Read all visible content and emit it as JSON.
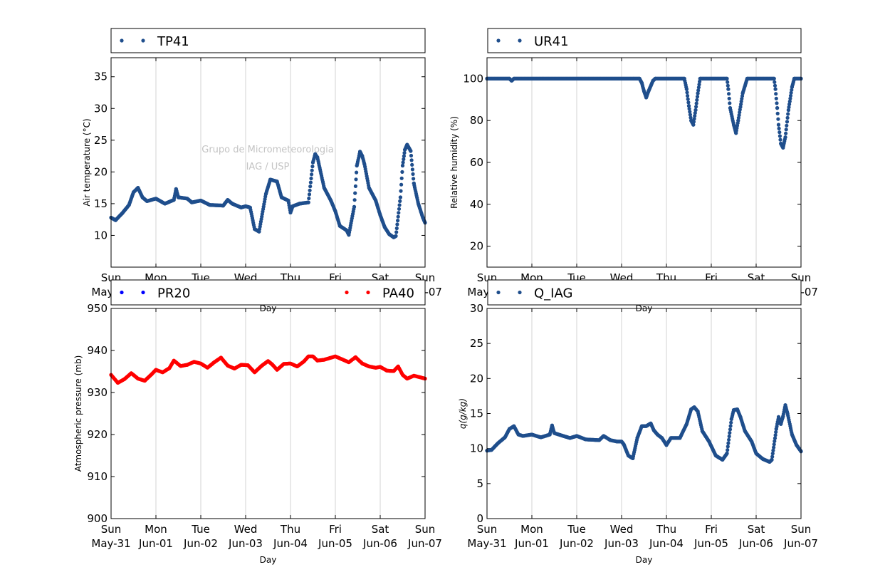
{
  "watermark": {
    "line1": "Grupo de Micrometeorologia",
    "line2": "IAG / USP"
  },
  "colors": {
    "blue_series": "#1f4e8c",
    "pr20": "#0000ff",
    "pa40": "#ff0000",
    "grid": "#c8c8c8"
  },
  "x_ticks": [
    {
      "day": "Sun",
      "date": "May-31"
    },
    {
      "day": "Mon",
      "date": "Jun-01"
    },
    {
      "day": "Tue",
      "date": "Jun-02"
    },
    {
      "day": "Wed",
      "date": "Jun-03"
    },
    {
      "day": "Thu",
      "date": "Jun-04"
    },
    {
      "day": "Fri",
      "date": "Jun-05"
    },
    {
      "day": "Sat",
      "date": "Jun-06"
    },
    {
      "day": "Sun",
      "date": "Jun-07"
    }
  ],
  "chart_data": [
    {
      "type": "scatter",
      "id": "temp",
      "ylabel": "Air temperature (°C)",
      "xlabel": "Day",
      "xlim": [
        "May-31",
        "Jun-07"
      ],
      "ylim": [
        5,
        38
      ],
      "yticks": [
        10,
        15,
        20,
        25,
        30,
        35
      ],
      "grid": "vertical",
      "legend_position": "top",
      "series": [
        {
          "name": "TP41",
          "color": "#1f4e8c",
          "points": [
            [
              0,
              12.8
            ],
            [
              0.1,
              12.4
            ],
            [
              0.25,
              13.5
            ],
            [
              0.4,
              14.8
            ],
            [
              0.5,
              16.8
            ],
            [
              0.6,
              17.5
            ],
            [
              0.7,
              16
            ],
            [
              0.8,
              15.4
            ],
            [
              1,
              15.8
            ],
            [
              1.2,
              15
            ],
            [
              1.4,
              15.6
            ],
            [
              1.45,
              17.3
            ],
            [
              1.5,
              16
            ],
            [
              1.7,
              15.8
            ],
            [
              1.8,
              15.2
            ],
            [
              2,
              15.5
            ],
            [
              2.2,
              14.8
            ],
            [
              2.5,
              14.7
            ],
            [
              2.6,
              15.6
            ],
            [
              2.7,
              15
            ],
            [
              2.9,
              14.4
            ],
            [
              3,
              14.6
            ],
            [
              3.1,
              14.4
            ],
            [
              3.2,
              11
            ],
            [
              3.3,
              10.6
            ],
            [
              3.45,
              16.5
            ],
            [
              3.55,
              18.8
            ],
            [
              3.7,
              18.5
            ],
            [
              3.8,
              16
            ],
            [
              3.95,
              15.5
            ],
            [
              4,
              13.6
            ],
            [
              4.05,
              14.6
            ],
            [
              4.2,
              15
            ],
            [
              4.4,
              15.2
            ],
            [
              4.5,
              21.5
            ],
            [
              4.55,
              22.8
            ],
            [
              4.6,
              22.3
            ],
            [
              4.75,
              17.5
            ],
            [
              4.9,
              15.5
            ],
            [
              5,
              13.8
            ],
            [
              5.1,
              11.5
            ],
            [
              5.25,
              10.8
            ],
            [
              5.3,
              10.1
            ],
            [
              5.42,
              14.5
            ],
            [
              5.48,
              21
            ],
            [
              5.55,
              23.2
            ],
            [
              5.6,
              22.5
            ],
            [
              5.65,
              21.2
            ],
            [
              5.75,
              17.5
            ],
            [
              5.9,
              15.5
            ],
            [
              6,
              13.2
            ],
            [
              6.1,
              11.3
            ],
            [
              6.2,
              10.2
            ],
            [
              6.3,
              9.7
            ],
            [
              6.35,
              9.9
            ],
            [
              6.45,
              16
            ],
            [
              6.5,
              21
            ],
            [
              6.55,
              23.5
            ],
            [
              6.6,
              24.3
            ],
            [
              6.68,
              23.3
            ],
            [
              6.75,
              18.2
            ],
            [
              6.85,
              15
            ],
            [
              6.95,
              12.8
            ],
            [
              7,
              12
            ]
          ]
        }
      ]
    },
    {
      "type": "scatter",
      "id": "humidity",
      "ylabel": "Relative humidity (%)",
      "xlabel": "Day",
      "xlim": [
        "May-31",
        "Jun-07"
      ],
      "ylim": [
        10,
        110
      ],
      "yticks": [
        20,
        40,
        60,
        80,
        100
      ],
      "grid": "vertical",
      "legend_position": "top",
      "series": [
        {
          "name": "UR41",
          "color": "#1f4e8c",
          "points": [
            [
              0,
              100
            ],
            [
              0.5,
              100
            ],
            [
              0.55,
              99
            ],
            [
              0.6,
              100
            ],
            [
              3.4,
              100
            ],
            [
              3.45,
              98
            ],
            [
              3.5,
              94
            ],
            [
              3.55,
              91
            ],
            [
              3.6,
              94
            ],
            [
              3.7,
              99
            ],
            [
              3.75,
              100
            ],
            [
              4.4,
              100
            ],
            [
              4.45,
              95
            ],
            [
              4.5,
              87
            ],
            [
              4.55,
              80
            ],
            [
              4.6,
              78
            ],
            [
              4.65,
              85
            ],
            [
              4.7,
              93
            ],
            [
              4.75,
              100
            ],
            [
              5.35,
              100
            ],
            [
              5.38,
              95
            ],
            [
              5.42,
              86
            ],
            [
              5.5,
              78
            ],
            [
              5.55,
              74
            ],
            [
              5.6,
              80
            ],
            [
              5.7,
              93
            ],
            [
              5.8,
              100
            ],
            [
              6.4,
              100
            ],
            [
              6.43,
              95
            ],
            [
              6.47,
              86
            ],
            [
              6.5,
              78
            ],
            [
              6.55,
              69
            ],
            [
              6.6,
              67
            ],
            [
              6.65,
              72
            ],
            [
              6.72,
              85
            ],
            [
              6.8,
              96
            ],
            [
              6.85,
              100
            ],
            [
              7,
              100
            ]
          ]
        }
      ]
    },
    {
      "type": "scatter",
      "id": "pressure",
      "ylabel": "Atmospheric pressure (mb)",
      "xlabel": "Day",
      "xlim": [
        "May-31",
        "Jun-07"
      ],
      "ylim": [
        900,
        950
      ],
      "yticks": [
        900,
        910,
        920,
        930,
        940,
        950
      ],
      "grid": "vertical",
      "legend_position": "top",
      "series": [
        {
          "name": "PR20",
          "color": "#0000ff",
          "points": []
        },
        {
          "name": "PA40",
          "color": "#ff0000",
          "points": [
            [
              0,
              934.2
            ],
            [
              0.15,
              932.3
            ],
            [
              0.3,
              933.2
            ],
            [
              0.45,
              934.6
            ],
            [
              0.6,
              933.3
            ],
            [
              0.75,
              932.8
            ],
            [
              0.9,
              934.3
            ],
            [
              1,
              935.4
            ],
            [
              1.15,
              934.8
            ],
            [
              1.3,
              935.8
            ],
            [
              1.4,
              937.6
            ],
            [
              1.55,
              936.3
            ],
            [
              1.7,
              936.6
            ],
            [
              1.85,
              937.3
            ],
            [
              2,
              936.9
            ],
            [
              2.15,
              935.9
            ],
            [
              2.3,
              937.2
            ],
            [
              2.45,
              938.3
            ],
            [
              2.6,
              936.4
            ],
            [
              2.75,
              935.7
            ],
            [
              2.9,
              936.6
            ],
            [
              3.05,
              936.5
            ],
            [
              3.2,
              934.8
            ],
            [
              3.35,
              936.3
            ],
            [
              3.5,
              937.5
            ],
            [
              3.6,
              936.6
            ],
            [
              3.7,
              935.4
            ],
            [
              3.85,
              936.8
            ],
            [
              4,
              936.9
            ],
            [
              4.15,
              936.2
            ],
            [
              4.3,
              937.4
            ],
            [
              4.4,
              938.6
            ],
            [
              4.5,
              938.6
            ],
            [
              4.6,
              937.6
            ],
            [
              4.75,
              937.8
            ],
            [
              5,
              938.6
            ],
            [
              5.15,
              937.9
            ],
            [
              5.3,
              937.2
            ],
            [
              5.45,
              938.4
            ],
            [
              5.6,
              936.9
            ],
            [
              5.75,
              936.2
            ],
            [
              5.9,
              935.9
            ],
            [
              6,
              936.1
            ],
            [
              6.15,
              935.2
            ],
            [
              6.3,
              935.1
            ],
            [
              6.4,
              936.2
            ],
            [
              6.5,
              934.2
            ],
            [
              6.6,
              933.3
            ],
            [
              6.75,
              934
            ],
            [
              6.9,
              933.6
            ],
            [
              7,
              933.3
            ]
          ]
        }
      ]
    },
    {
      "type": "scatter",
      "id": "specific_humidity",
      "ylabel": "q(g/kg)",
      "xlabel": "Day",
      "xlim": [
        "May-31",
        "Jun-07"
      ],
      "ylim": [
        0,
        30
      ],
      "yticks": [
        0,
        5,
        10,
        15,
        20,
        25,
        30
      ],
      "grid": "vertical",
      "legend_position": "top",
      "series": [
        {
          "name": "Q_IAG",
          "color": "#1f4e8c",
          "points": [
            [
              0,
              9.7
            ],
            [
              0.1,
              9.8
            ],
            [
              0.25,
              10.8
            ],
            [
              0.4,
              11.6
            ],
            [
              0.5,
              12.8
            ],
            [
              0.6,
              13.2
            ],
            [
              0.7,
              12
            ],
            [
              0.8,
              11.8
            ],
            [
              1,
              12
            ],
            [
              1.2,
              11.6
            ],
            [
              1.4,
              12
            ],
            [
              1.45,
              13.3
            ],
            [
              1.5,
              12.2
            ],
            [
              1.7,
              11.8
            ],
            [
              1.85,
              11.5
            ],
            [
              2,
              11.8
            ],
            [
              2.2,
              11.3
            ],
            [
              2.5,
              11.2
            ],
            [
              2.6,
              11.8
            ],
            [
              2.75,
              11.2
            ],
            [
              2.9,
              11
            ],
            [
              3,
              11
            ],
            [
              3.05,
              10.6
            ],
            [
              3.15,
              9
            ],
            [
              3.25,
              8.6
            ],
            [
              3.35,
              11.5
            ],
            [
              3.45,
              13.2
            ],
            [
              3.55,
              13.2
            ],
            [
              3.65,
              13.6
            ],
            [
              3.72,
              12.6
            ],
            [
              3.8,
              12
            ],
            [
              3.9,
              11.5
            ],
            [
              4,
              10.5
            ],
            [
              4.1,
              11.5
            ],
            [
              4.3,
              11.5
            ],
            [
              4.45,
              13.5
            ],
            [
              4.55,
              15.6
            ],
            [
              4.62,
              15.9
            ],
            [
              4.7,
              15.3
            ],
            [
              4.8,
              12.5
            ],
            [
              4.95,
              11
            ],
            [
              5.1,
              9
            ],
            [
              5.25,
              8.4
            ],
            [
              5.35,
              9.3
            ],
            [
              5.45,
              14.2
            ],
            [
              5.5,
              15.5
            ],
            [
              5.58,
              15.6
            ],
            [
              5.65,
              14.5
            ],
            [
              5.75,
              12.5
            ],
            [
              5.9,
              11
            ],
            [
              6,
              9.3
            ],
            [
              6.15,
              8.5
            ],
            [
              6.3,
              8.1
            ],
            [
              6.35,
              8.4
            ],
            [
              6.45,
              12.8
            ],
            [
              6.5,
              14.5
            ],
            [
              6.55,
              13.5
            ],
            [
              6.6,
              14.6
            ],
            [
              6.65,
              16.2
            ],
            [
              6.7,
              15
            ],
            [
              6.8,
              12
            ],
            [
              6.9,
              10.5
            ],
            [
              7,
              9.6
            ]
          ]
        }
      ]
    }
  ]
}
